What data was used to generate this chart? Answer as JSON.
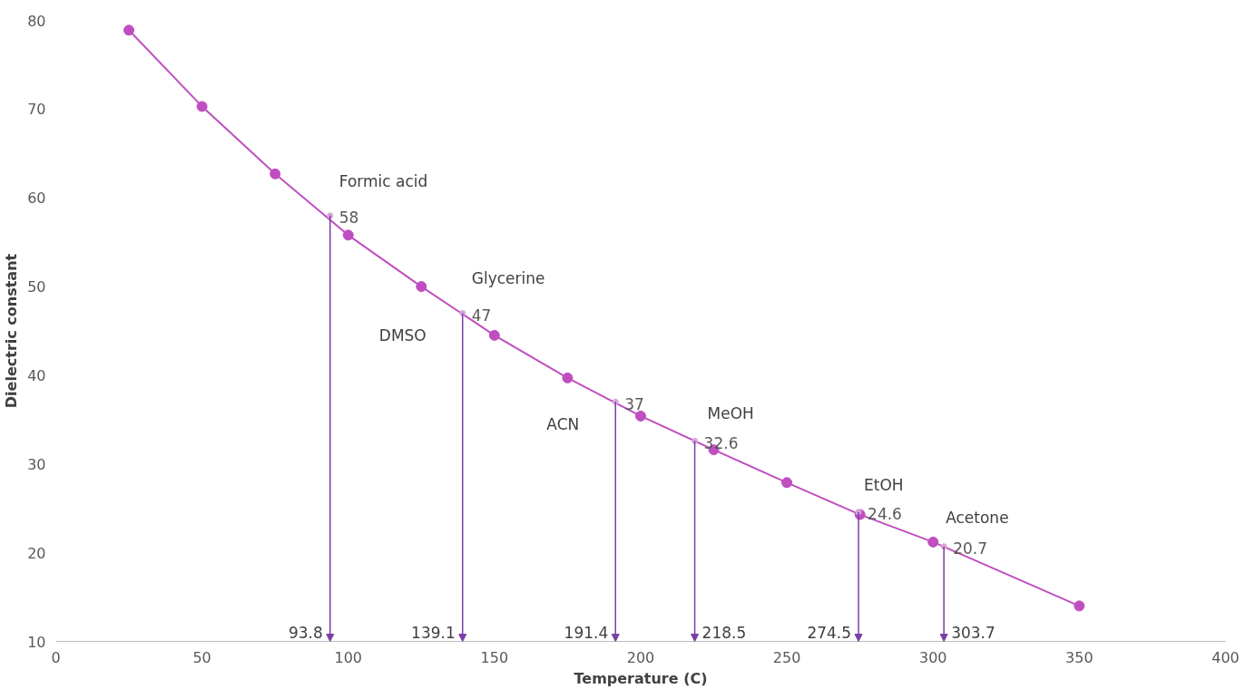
{
  "chart_data": {
    "type": "line",
    "xlabel": "Temperature (C)",
    "ylabel": "Dielectric constant",
    "xlim": [
      0,
      400
    ],
    "xticks": [
      0,
      50,
      100,
      150,
      200,
      250,
      300,
      350,
      400
    ],
    "ylim": [
      10,
      80
    ],
    "yticks": [
      10,
      20,
      30,
      40,
      50,
      60,
      70,
      80
    ],
    "grid": false,
    "legend": false,
    "marker": "circle",
    "line_style": "solid",
    "series": [
      {
        "color": "#c04ec0",
        "x": [
          25,
          50,
          75,
          100,
          125,
          150,
          175,
          200,
          225,
          250,
          275,
          300,
          350
        ],
        "values": [
          78.9,
          70.3,
          62.7,
          55.8,
          50.0,
          44.5,
          39.7,
          35.4,
          31.6,
          27.9,
          24.3,
          21.2,
          14.0
        ]
      },
      {
        "type": "scatter",
        "color": "#d9a6d9",
        "x": [
          93.8,
          139.1,
          191.4,
          218.5,
          274.5,
          303.7
        ],
        "values": [
          58,
          47,
          37,
          32.6,
          24.6,
          20.7
        ],
        "value_labels": [
          "58",
          "47",
          "37",
          "32.6",
          "24.6",
          "20.7"
        ]
      }
    ],
    "annotations": [
      {
        "text": "Formic acid",
        "x": 93.8,
        "y": 58
      },
      {
        "text": "Glycerine",
        "x": 139.1,
        "y": 47
      },
      {
        "text": "DMSO",
        "x": 139.1,
        "y": 47
      },
      {
        "text": "ACN",
        "x": 191.4,
        "y": 37
      },
      {
        "text": "MeOH",
        "x": 218.5,
        "y": 32.6
      },
      {
        "text": "EtOH",
        "x": 274.5,
        "y": 24.6
      },
      {
        "text": "Acetone",
        "x": 303.7,
        "y": 20.7
      },
      "93.8",
      "139.1",
      "191.4",
      "218.5",
      "274.5",
      "303.7"
    ]
  }
}
